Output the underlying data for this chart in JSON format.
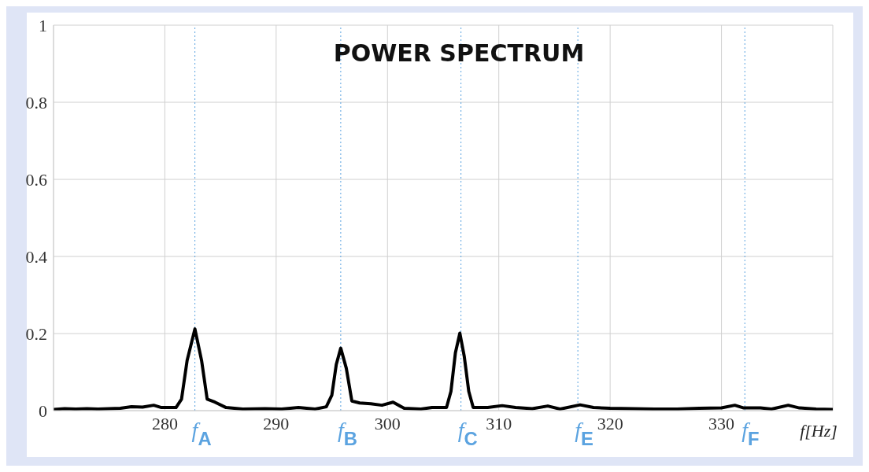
{
  "chart_data": {
    "type": "line",
    "title": "POWER SPECTRUM",
    "xlabel": "f[Hz]",
    "x": [
      270,
      271,
      272,
      273,
      274,
      275,
      276,
      277,
      278,
      279,
      279.7,
      281,
      281.5,
      282,
      282.7,
      283.3,
      283.8,
      284.5,
      285.5,
      287,
      289,
      290.5,
      292,
      293.5,
      294.5,
      295,
      295.4,
      295.8,
      296.3,
      296.8,
      297.5,
      298.5,
      299.5,
      300.5,
      301.5,
      303,
      304,
      305.3,
      305.7,
      306.1,
      306.5,
      306.9,
      307.3,
      307.7,
      309,
      310.3,
      311.5,
      313,
      314.4,
      315.5,
      317.3,
      318.5,
      320,
      322,
      324,
      326,
      328,
      330,
      331.2,
      332,
      333.5,
      334.5,
      336,
      337,
      338.5,
      340
    ],
    "values": [
      0.003,
      0.005,
      0.004,
      0.005,
      0.004,
      0.005,
      0.006,
      0.01,
      0.009,
      0.014,
      0.008,
      0.008,
      0.03,
      0.13,
      0.212,
      0.13,
      0.03,
      0.022,
      0.008,
      0.004,
      0.005,
      0.004,
      0.008,
      0.004,
      0.01,
      0.04,
      0.12,
      0.162,
      0.11,
      0.025,
      0.02,
      0.018,
      0.014,
      0.022,
      0.006,
      0.004,
      0.008,
      0.008,
      0.05,
      0.15,
      0.201,
      0.14,
      0.05,
      0.008,
      0.008,
      0.013,
      0.008,
      0.005,
      0.012,
      0.004,
      0.015,
      0.008,
      0.006,
      0.005,
      0.004,
      0.004,
      0.006,
      0.007,
      0.014,
      0.007,
      0.007,
      0.004,
      0.014,
      0.007,
      0.004,
      0.003
    ],
    "color": "#000000",
    "xlim": [
      270,
      340
    ],
    "xticks": [
      {
        "value": 270,
        "label": null
      },
      280,
      290,
      300,
      310,
      320,
      330,
      {
        "value": 340,
        "label": null
      }
    ],
    "ylim": [
      0,
      1
    ],
    "yticks": [
      0,
      0.2,
      0.4,
      0.6,
      0.8,
      1
    ],
    "grid": true,
    "marker": "none",
    "legend": false,
    "ref_lines": [
      {
        "axis": "x",
        "value": 282.7,
        "label": "f$_{A}$",
        "color": "#5ba3e0",
        "line_style": "dotted"
      },
      {
        "axis": "x",
        "value": 295.8,
        "label": "f$_{B}$",
        "color": "#5ba3e0",
        "line_style": "dotted"
      },
      {
        "axis": "x",
        "value": 306.6,
        "label": "f$_{C}$",
        "color": "#5ba3e0",
        "line_style": "dotted"
      },
      {
        "axis": "x",
        "value": 317.1,
        "label": "f$_{E}$",
        "color": "#5ba3e0",
        "line_style": "dotted"
      },
      {
        "axis": "x",
        "value": 332.1,
        "label": "f$_{F}$",
        "color": "#5ba3e0",
        "line_style": "dotted"
      }
    ]
  }
}
